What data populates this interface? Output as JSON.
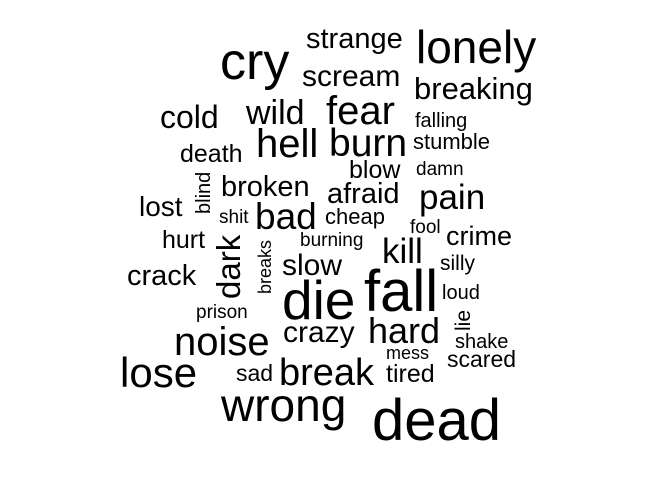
{
  "colors": {
    "background": "#ffffff",
    "text": "#000000"
  },
  "words": [
    {
      "text": "strange"
    },
    {
      "text": "lonely"
    },
    {
      "text": "cry"
    },
    {
      "text": "scream"
    },
    {
      "text": "breaking"
    },
    {
      "text": "fear"
    },
    {
      "text": "wild"
    },
    {
      "text": "cold"
    },
    {
      "text": "falling"
    },
    {
      "text": "hell"
    },
    {
      "text": "burn"
    },
    {
      "text": "stumble"
    },
    {
      "text": "death"
    },
    {
      "text": "blow"
    },
    {
      "text": "damn"
    },
    {
      "text": "blind"
    },
    {
      "text": "broken"
    },
    {
      "text": "afraid"
    },
    {
      "text": "pain"
    },
    {
      "text": "lost"
    },
    {
      "text": "shit"
    },
    {
      "text": "bad"
    },
    {
      "text": "cheap"
    },
    {
      "text": "fool"
    },
    {
      "text": "hurt"
    },
    {
      "text": "dark"
    },
    {
      "text": "breaks"
    },
    {
      "text": "burning"
    },
    {
      "text": "kill"
    },
    {
      "text": "crime"
    },
    {
      "text": "crack"
    },
    {
      "text": "slow"
    },
    {
      "text": "silly"
    },
    {
      "text": "die"
    },
    {
      "text": "fall"
    },
    {
      "text": "loud"
    },
    {
      "text": "prison"
    },
    {
      "text": "lie"
    },
    {
      "text": "noise"
    },
    {
      "text": "crazy"
    },
    {
      "text": "hard"
    },
    {
      "text": "shake"
    },
    {
      "text": "mess"
    },
    {
      "text": "scared"
    },
    {
      "text": "lose"
    },
    {
      "text": "sad"
    },
    {
      "text": "break"
    },
    {
      "text": "tired"
    },
    {
      "text": "wrong"
    },
    {
      "text": "dead"
    }
  ]
}
